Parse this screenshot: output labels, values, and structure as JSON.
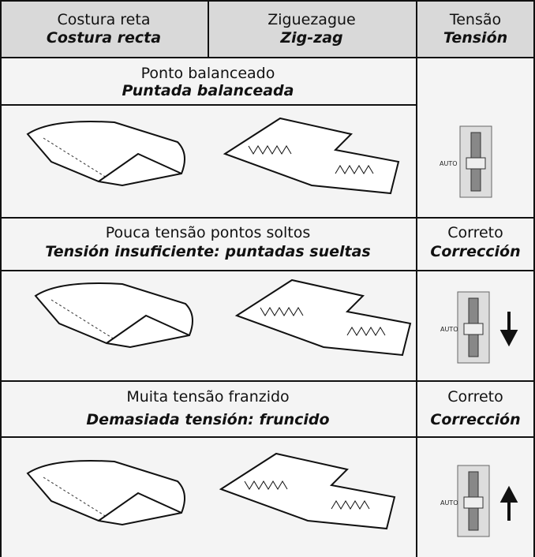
{
  "header": {
    "columns": [
      {
        "pt": "Costura reta",
        "es": "Costura recta"
      },
      {
        "pt": "Ziguezague",
        "es": "Zig-zag"
      },
      {
        "pt": "Tensão",
        "es": "Tensión"
      }
    ]
  },
  "sections": [
    {
      "pt": "Ponto balanceado",
      "es": "Puntada balanceada",
      "dial_label": "AUTO"
    },
    {
      "pt": "Pouca tensão  pontos soltos",
      "es": "Tensión insuficiente: puntadas sueltas",
      "tension_pt": "Correto",
      "tension_es": "Corrección",
      "dial_label": "AUTO"
    },
    {
      "pt": "Muita tensão  franzido",
      "es": "Demasiada tensión: fruncido",
      "tension_pt": "Correto",
      "tension_es": "Corrección",
      "dial_label": "AUTO"
    }
  ]
}
